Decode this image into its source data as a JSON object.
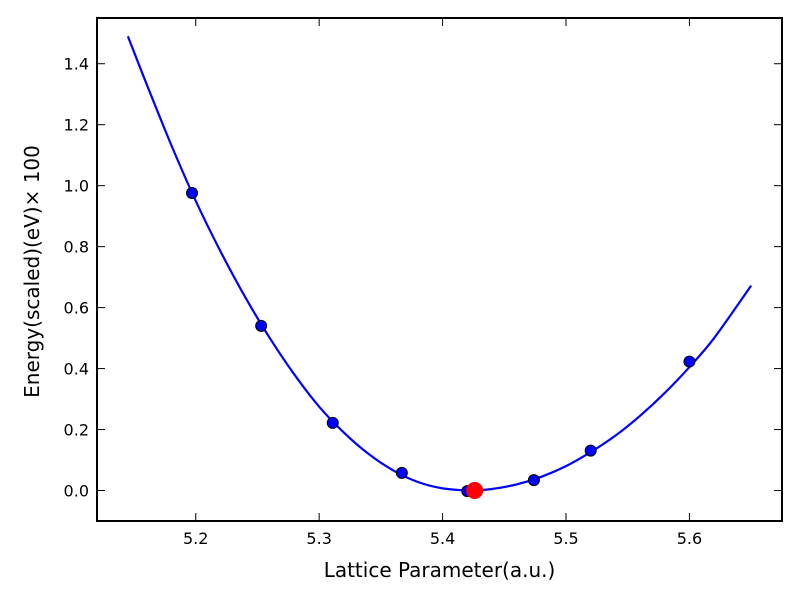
{
  "chart_data": {
    "type": "scatter",
    "xlabel": "Lattice Parameter(a.u.)",
    "ylabel": "Energy(scaled)(eV)× 100",
    "xlim": [
      5.12,
      5.675
    ],
    "ylim": [
      -0.1,
      1.55
    ],
    "xticks": [
      5.2,
      5.3,
      5.4,
      5.5,
      5.6
    ],
    "yticks": [
      0.0,
      0.2,
      0.4,
      0.6,
      0.8,
      1.0,
      1.2,
      1.4
    ],
    "xtick_labels": [
      "5.2",
      "5.3",
      "5.4",
      "5.5",
      "5.6"
    ],
    "ytick_labels": [
      "0.0",
      "0.2",
      "0.4",
      "0.6",
      "0.8",
      "1.0",
      "1.2",
      "1.4"
    ],
    "grid": false,
    "legend": false,
    "series": [
      {
        "kind": "points",
        "color": "#0000ff",
        "x": [
          5.197,
          5.253,
          5.311,
          5.367,
          5.42,
          5.474,
          5.52,
          5.6
        ],
        "y": [
          0.976,
          0.54,
          0.222,
          0.058,
          -0.002,
          0.034,
          0.131,
          0.423
        ]
      },
      {
        "kind": "fit-curve",
        "color": "#0000ff",
        "x": [
          5.145,
          5.16,
          5.18,
          5.2,
          5.22,
          5.24,
          5.26,
          5.28,
          5.3,
          5.32,
          5.34,
          5.36,
          5.38,
          5.4,
          5.42,
          5.426,
          5.44,
          5.46,
          5.48,
          5.5,
          5.52,
          5.54,
          5.56,
          5.58,
          5.6,
          5.62,
          5.65
        ],
        "y": [
          1.49,
          1.335,
          1.135,
          0.95,
          0.785,
          0.635,
          0.5,
          0.38,
          0.275,
          0.19,
          0.12,
          0.066,
          0.028,
          0.007,
          0.0,
          0.0,
          0.005,
          0.02,
          0.045,
          0.08,
          0.126,
          0.18,
          0.245,
          0.32,
          0.405,
          0.5,
          0.672
        ]
      },
      {
        "kind": "minimum",
        "color": "#ff0000",
        "x": [
          5.426
        ],
        "y": [
          0.0
        ]
      }
    ]
  }
}
